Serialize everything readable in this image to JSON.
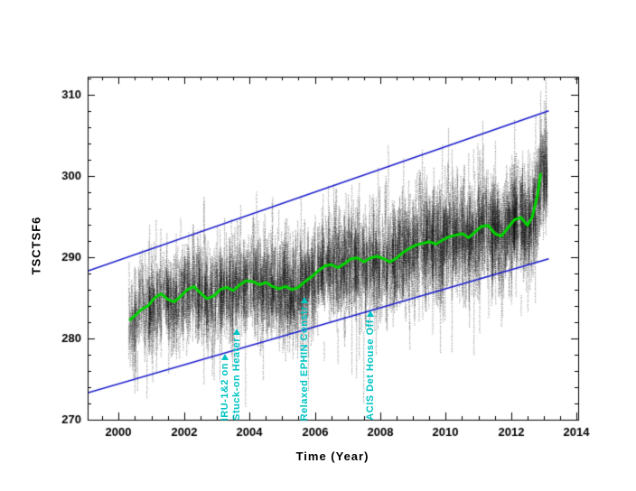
{
  "figure": {
    "bg_color": "#ffffff",
    "axis_color": "#000000",
    "scatter_color": "#000000",
    "trend_color": "#00d400",
    "envelope_color": "#1818cc",
    "annotation_color": "#00c3c3"
  },
  "chart_data": {
    "type": "scatter",
    "title": "",
    "xlabel": "Time (Year)",
    "ylabel": "TSCTSF6",
    "xlim": [
      1999.05,
      2014.05
    ],
    "ylim": [
      270,
      312.2
    ],
    "xticks": [
      2000,
      2002,
      2004,
      2006,
      2008,
      2010,
      2012,
      2014
    ],
    "yticks": [
      270,
      280,
      290,
      300,
      310
    ],
    "x_minor_step": 0.5,
    "y_minor_step": 2,
    "grid": false,
    "legend": "none",
    "trend": {
      "name": "monthly-average-trend",
      "x": [
        2000.35,
        2000.5,
        2000.7,
        2000.9,
        2001.1,
        2001.3,
        2001.5,
        2001.7,
        2001.9,
        2002.1,
        2002.3,
        2002.5,
        2002.7,
        2002.9,
        2003.1,
        2003.3,
        2003.5,
        2003.7,
        2003.9,
        2004.1,
        2004.3,
        2004.5,
        2004.7,
        2004.9,
        2005.1,
        2005.3,
        2005.5,
        2005.7,
        2005.9,
        2006.1,
        2006.3,
        2006.5,
        2006.7,
        2006.9,
        2007.1,
        2007.3,
        2007.5,
        2007.7,
        2007.9,
        2008.1,
        2008.3,
        2008.5,
        2008.7,
        2008.9,
        2009.1,
        2009.3,
        2009.5,
        2009.7,
        2009.9,
        2010.1,
        2010.3,
        2010.5,
        2010.7,
        2010.9,
        2011.1,
        2011.3,
        2011.5,
        2011.7,
        2011.9,
        2012.1,
        2012.3,
        2012.5,
        2012.65,
        2012.8,
        2012.9
      ],
      "y": [
        282.3,
        282.8,
        283.6,
        284.0,
        285.0,
        285.5,
        284.8,
        284.5,
        285.2,
        286.0,
        286.4,
        285.6,
        284.9,
        285.2,
        286.0,
        286.3,
        285.9,
        286.6,
        287.1,
        287.0,
        286.6,
        286.9,
        286.4,
        286.1,
        286.4,
        286.0,
        286.3,
        287.0,
        287.6,
        288.3,
        288.9,
        289.1,
        288.7,
        289.2,
        289.8,
        289.9,
        289.4,
        289.9,
        290.1,
        289.8,
        289.4,
        289.9,
        290.6,
        291.1,
        291.5,
        291.7,
        291.9,
        291.6,
        292.1,
        292.5,
        292.7,
        292.9,
        292.4,
        293.1,
        293.8,
        293.9,
        292.9,
        292.6,
        293.6,
        294.6,
        294.9,
        293.9,
        295.0,
        297.5,
        300.2
      ]
    },
    "envelope_lines": [
      {
        "name": "upper-limit-line",
        "x": [
          1999.05,
          2013.15
        ],
        "y": [
          288.3,
          308.0
        ]
      },
      {
        "name": "lower-limit-line",
        "x": [
          1999.05,
          2013.15
        ],
        "y": [
          273.3,
          289.8
        ]
      }
    ],
    "scatter": {
      "name": "telemetry-samples",
      "x_start": 2000.3,
      "x_end": 2013.1,
      "n_streaks": 3200,
      "streak_sigma": 1.8,
      "wide_sigma": 3.4,
      "wide_fraction": 0.2,
      "dot_step": 0.22,
      "alpha": 0.45,
      "seed": 7
    },
    "annotations": [
      {
        "label": "IRU-1&2 on",
        "year": 2003.25
      },
      {
        "label": "Stuck-on Heater",
        "year": 2003.62
      },
      {
        "label": "Relaxed EPHIN Constr",
        "year": 2005.68
      },
      {
        "label": "ACIS Det House Off",
        "year": 2007.7
      }
    ]
  }
}
